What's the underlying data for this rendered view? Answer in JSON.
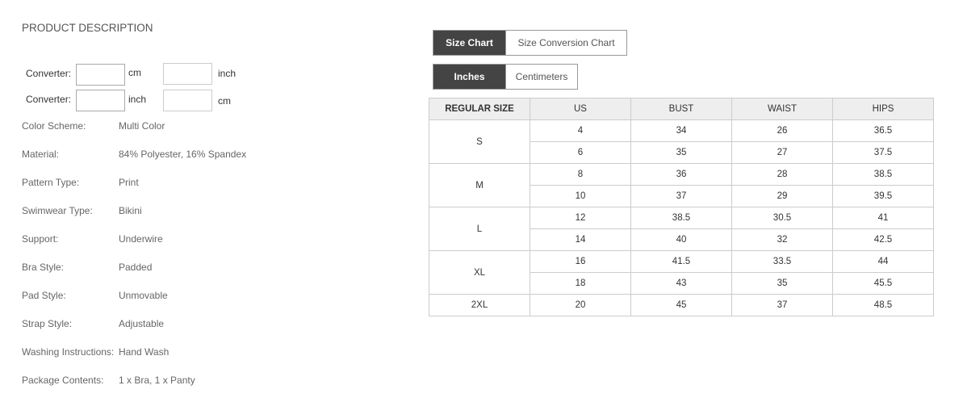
{
  "title": "PRODUCT DESCRIPTION",
  "converters": [
    {
      "label": "Converter:",
      "unit1": "cm",
      "unit2": "inch",
      "value1": "",
      "value2": ""
    },
    {
      "label": "Converter:",
      "unit1": "inch",
      "unit2": "cm",
      "value1": "",
      "value2": ""
    }
  ],
  "attributes": [
    {
      "k": "Color Scheme:",
      "v": "Multi Color"
    },
    {
      "k": "Material:",
      "v": "84% Polyester, 16% Spandex"
    },
    {
      "k": "Pattern Type:",
      "v": "Print"
    },
    {
      "k": "Swimwear Type:",
      "v": "Bikini"
    },
    {
      "k": "Support:",
      "v": "Underwire"
    },
    {
      "k": "Bra Style:",
      "v": "Padded"
    },
    {
      "k": "Pad Style:",
      "v": "Unmovable"
    },
    {
      "k": "Strap Style:",
      "v": "Adjustable"
    },
    {
      "k": "Washing Instructions:",
      "v": "Hand Wash"
    },
    {
      "k": "Package Contents:",
      "v": "1 x Bra, 1 x Panty"
    }
  ],
  "chart_tabs": [
    {
      "label": "Size Chart",
      "active": true
    },
    {
      "label": "Size Conversion Chart",
      "active": false
    }
  ],
  "unit_tabs": [
    {
      "label": "Inches",
      "active": true
    },
    {
      "label": "Centimeters",
      "active": false
    }
  ],
  "table": {
    "headers": [
      "REGULAR SIZE",
      "US",
      "BUST",
      "WAIST",
      "HIPS"
    ],
    "groups": [
      {
        "size": "S",
        "rows": [
          [
            "4",
            "34",
            "26",
            "36.5"
          ],
          [
            "6",
            "35",
            "27",
            "37.5"
          ]
        ]
      },
      {
        "size": "M",
        "rows": [
          [
            "8",
            "36",
            "28",
            "38.5"
          ],
          [
            "10",
            "37",
            "29",
            "39.5"
          ]
        ]
      },
      {
        "size": "L",
        "rows": [
          [
            "12",
            "38.5",
            "30.5",
            "41"
          ],
          [
            "14",
            "40",
            "32",
            "42.5"
          ]
        ]
      },
      {
        "size": "XL",
        "rows": [
          [
            "16",
            "41.5",
            "33.5",
            "44"
          ],
          [
            "18",
            "43",
            "35",
            "45.5"
          ]
        ]
      },
      {
        "size": "2XL",
        "rows": [
          [
            "20",
            "45",
            "37",
            "48.5"
          ]
        ]
      }
    ]
  }
}
